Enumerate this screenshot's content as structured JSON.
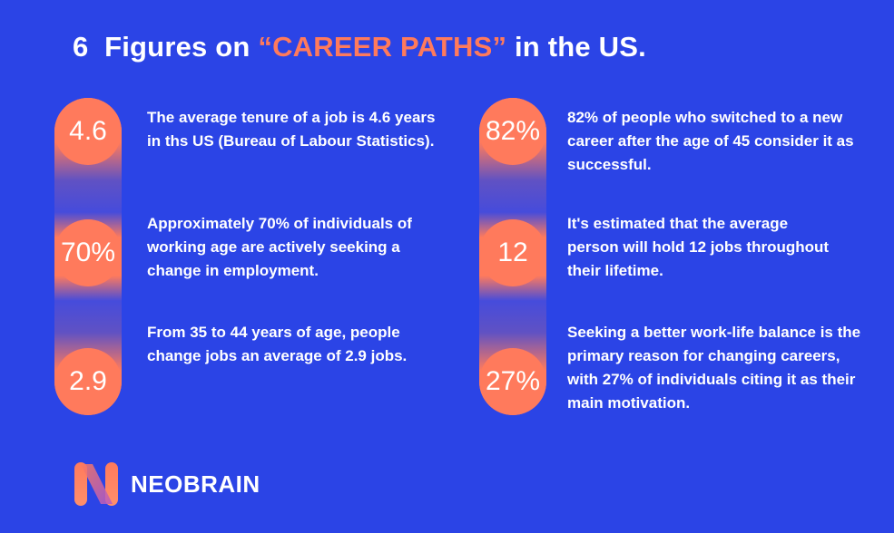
{
  "title": {
    "number": "6",
    "prefix": "Figures on",
    "highlight": "“CAREER PATHS”",
    "suffix": "in the US."
  },
  "left_column": [
    {
      "stat": "4.6",
      "text": "The average tenure of a job is 4.6 years in ths US (Bureau of Labour Statistics)."
    },
    {
      "stat": "70%",
      "text": "Approximately 70% of individuals of working age are actively seeking a change in employment."
    },
    {
      "stat": "2.9",
      "text": "From 35 to 44 years of age, people change jobs an average of 2.9 jobs."
    }
  ],
  "right_column": [
    {
      "stat": "82%",
      "text": "82% of people who switched to a new career after the age of 45 consider it as successful."
    },
    {
      "stat": "12",
      "text": "It's estimated that the average person will hold 12 jobs throughout their lifetime."
    },
    {
      "stat": "27%",
      "text": "Seeking a better work-life balance is the primary reason for changing careers, with 27% of individuals citing it as their main motivation."
    }
  ],
  "brand": {
    "name": "NEOBRAIN",
    "logo_icon": "neobrain-n-logo-icon"
  },
  "colors": {
    "background": "#2b44e6",
    "accent": "#ff7a5c",
    "text": "#ffffff"
  }
}
